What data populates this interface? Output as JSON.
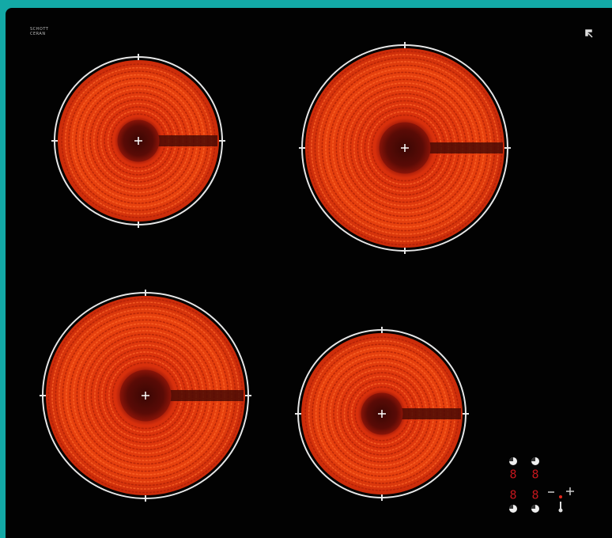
{
  "logo": {
    "line1": "SCHOTT",
    "line2": "CERAN"
  },
  "controls": {
    "displays": [
      "8",
      "8",
      "8",
      "8"
    ]
  }
}
